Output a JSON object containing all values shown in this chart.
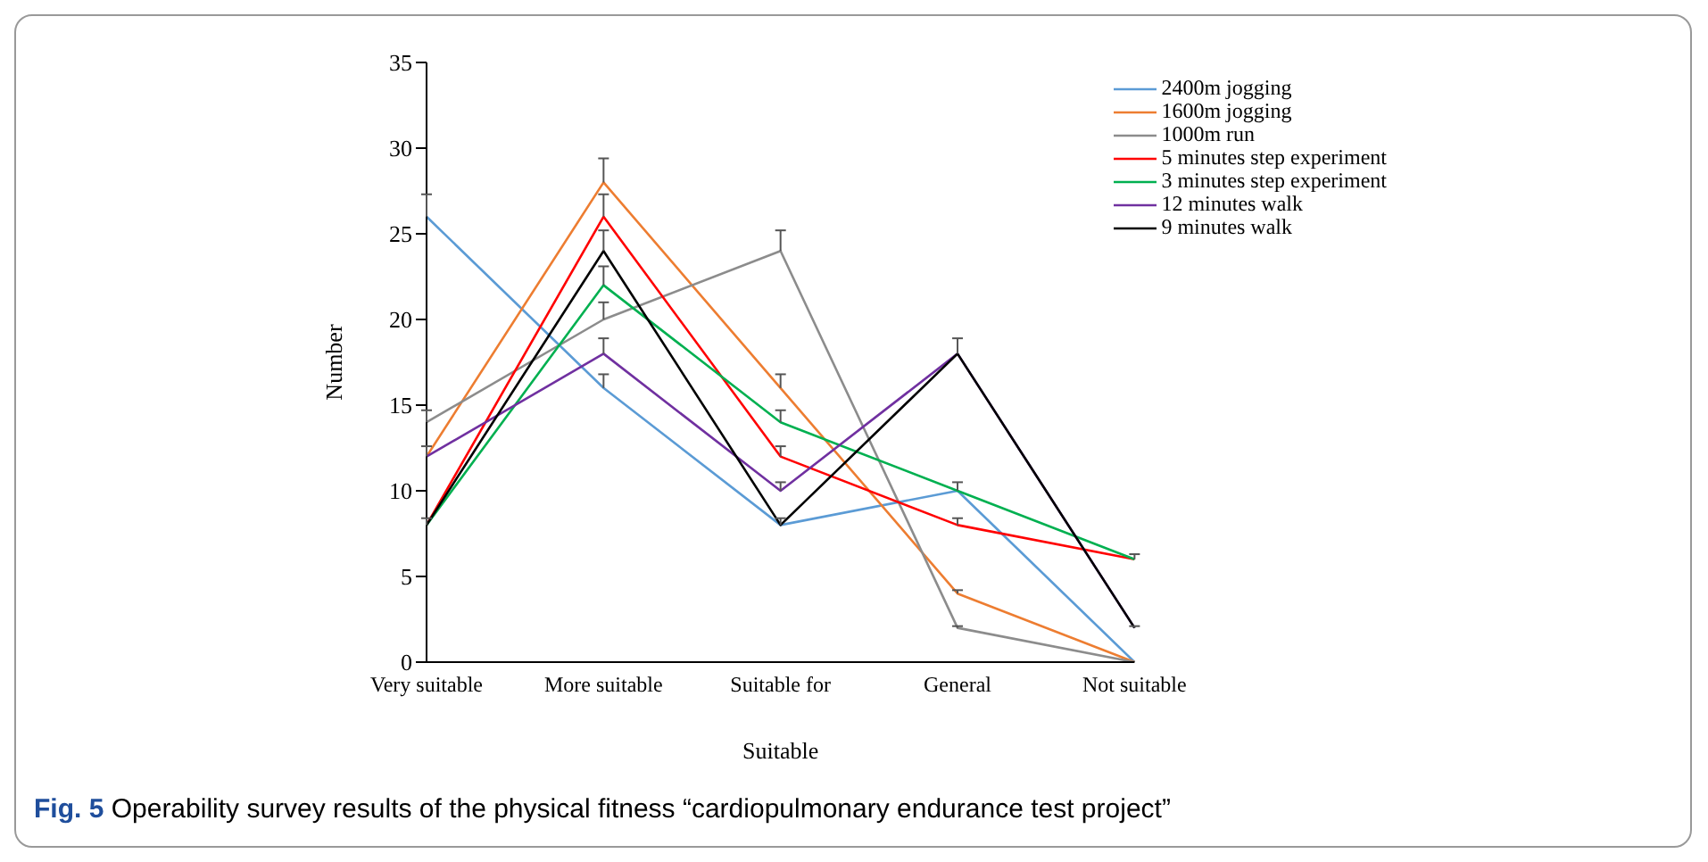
{
  "chart_data": {
    "type": "line",
    "xlabel": "Suitable",
    "ylabel": "Number",
    "categories": [
      "Very suitable",
      "More suitable",
      "Suitable for",
      "General",
      "Not suitable"
    ],
    "series": [
      {
        "name": "2400m jogging",
        "color": "#5b9bd5",
        "values": [
          26,
          16,
          8,
          10,
          0
        ],
        "errors": [
          [
            26,
            27.3
          ],
          [
            16,
            16.8
          ],
          [
            8,
            8.4
          ],
          [
            10,
            10.5
          ],
          null
        ]
      },
      {
        "name": "1600m jogging",
        "color": "#ed7d31",
        "values": [
          12,
          28,
          16,
          4,
          0
        ],
        "errors": [
          [
            12,
            12.6
          ],
          [
            28,
            29.4
          ],
          [
            16,
            16.8
          ],
          [
            4,
            4.2
          ],
          null
        ]
      },
      {
        "name": "1000m run",
        "color": "#8c8c8c",
        "values": [
          14,
          20,
          24,
          2,
          0
        ],
        "errors": [
          [
            14,
            14.7
          ],
          [
            20,
            21
          ],
          [
            24,
            25.2
          ],
          [
            2,
            2.1
          ],
          null
        ]
      },
      {
        "name": "5 minutes step experiment",
        "color": "#ff0000",
        "values": [
          8,
          26,
          12,
          8,
          6
        ],
        "errors": [
          [
            8,
            8.4
          ],
          [
            26,
            27.3
          ],
          [
            12,
            12.6
          ],
          [
            8,
            8.4
          ],
          [
            6,
            6.3
          ]
        ]
      },
      {
        "name": "3 minutes step experiment",
        "color": "#00b050",
        "values": [
          8,
          22,
          14,
          10,
          6
        ],
        "errors": [
          null,
          [
            22,
            23.1
          ],
          [
            14,
            14.7
          ],
          null,
          null
        ]
      },
      {
        "name": "12 minutes walk",
        "color": "#7030a0",
        "values": [
          12,
          18,
          10,
          18,
          2
        ],
        "errors": [
          null,
          [
            18,
            18.9
          ],
          [
            10,
            10.5
          ],
          null,
          null
        ]
      },
      {
        "name": "9 minutes walk",
        "color": "#000000",
        "values": [
          8,
          24,
          8,
          18,
          2
        ],
        "errors": [
          null,
          [
            24,
            25.2
          ],
          null,
          [
            18,
            18.9
          ],
          [
            2,
            2.1
          ]
        ]
      }
    ],
    "ylim": [
      0,
      35
    ],
    "yticks": [
      0,
      5,
      10,
      15,
      20,
      25,
      30,
      35
    ],
    "legend": "top right",
    "grid": false,
    "marker": "none",
    "line_style": "solid",
    "annotations": [
      "Fig. 5 Operability survey results of the physical fitness “cardiopulmonary endurance test project”"
    ]
  }
}
